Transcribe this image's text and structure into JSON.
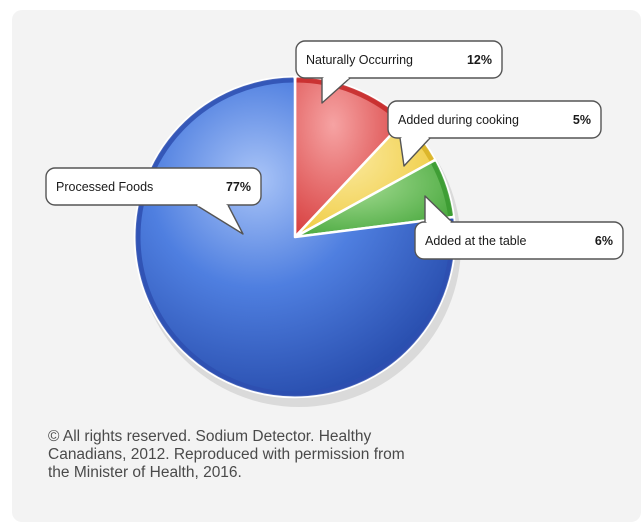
{
  "chart_data": {
    "type": "pie",
    "categories": [
      "Naturally Occurring",
      "Added during cooking",
      "Added at the table",
      "Processed Foods"
    ],
    "values": [
      12,
      5,
      6,
      77
    ],
    "labels": [
      "12%",
      "5%",
      "6%",
      "77%"
    ],
    "colors": [
      "#e04a4a",
      "#f2d24a",
      "#56b848",
      "#3d6fd6"
    ],
    "legend": "callouts"
  },
  "caption": {
    "lines": [
      "© All rights reserved. Sodium Detector. Healthy",
      "Canadians, 2012. Reproduced with permission from",
      "the Minister of Health, 2016."
    ]
  }
}
